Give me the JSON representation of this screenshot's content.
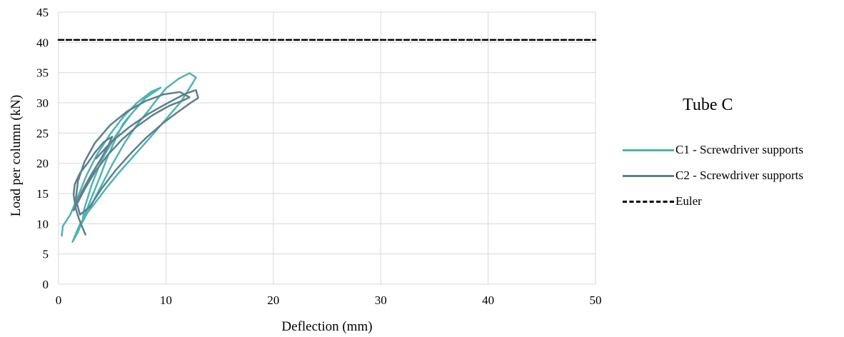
{
  "chart_data": {
    "type": "line",
    "title": "",
    "annotation": "Tube C",
    "xlabel": "Deflection (mm)",
    "ylabel": "Load per column (kN)",
    "xlim": [
      0,
      50
    ],
    "ylim": [
      0,
      45
    ],
    "xticks": [
      0,
      10,
      20,
      30,
      40,
      50
    ],
    "yticks": [
      0,
      5,
      10,
      15,
      20,
      25,
      30,
      35,
      40,
      45
    ],
    "grid": true,
    "legend_position": "right",
    "series": [
      {
        "name": "C1 - Screwdriver supports",
        "color": "#4fb3b3",
        "x": [
          0.3,
          0.4,
          1.1,
          1.8,
          2.6,
          3.6,
          4.8,
          6.0,
          7.3,
          8.6,
          9.5,
          8.1,
          6.7,
          5.3,
          4.0,
          3.1,
          2.4,
          2.2,
          2.8,
          3.9,
          5.0,
          6.2,
          7.4,
          8.5,
          9.0,
          10.0,
          11.2,
          12.2,
          12.8,
          12.4,
          11.4,
          10.1,
          8.7,
          7.2,
          5.7,
          4.4,
          3.3,
          2.5,
          1.9,
          1.3,
          1.8,
          2.3,
          3.0,
          3.8,
          4.5,
          5.2,
          6.0,
          6.6
        ],
        "y": [
          8.0,
          9.6,
          11.5,
          14.5,
          18.0,
          21.5,
          24.8,
          27.6,
          30.0,
          31.8,
          32.5,
          30.8,
          28.0,
          24.5,
          20.5,
          16.5,
          12.5,
          10.2,
          12.2,
          16.0,
          19.8,
          23.5,
          26.6,
          29.0,
          30.2,
          32.4,
          34.0,
          34.9,
          34.2,
          33.0,
          30.2,
          27.5,
          24.6,
          21.6,
          18.6,
          15.8,
          13.2,
          11.4,
          9.6,
          7.0,
          8.6,
          10.8,
          14.0,
          17.5,
          20.8,
          23.6,
          26.5,
          27.8
        ]
      },
      {
        "name": "C2 - Screwdriver supports",
        "color": "#5e7f8c",
        "x": [
          2.5,
          2.2,
          1.9,
          1.6,
          1.4,
          1.5,
          2.0,
          2.7,
          3.4,
          4.2,
          5.0,
          4.6,
          3.9,
          3.0,
          2.2,
          1.6,
          1.4,
          1.7,
          2.4,
          3.4,
          4.6,
          5.9,
          7.3,
          8.8,
          10.3,
          11.6,
          12.2,
          11.3,
          9.8,
          8.1,
          6.4,
          4.8,
          3.4,
          2.4,
          1.8,
          1.6,
          2.0,
          2.9,
          4.0,
          5.3,
          6.7,
          8.2,
          9.7,
          11.2,
          12.3,
          13.0,
          12.8,
          11.8,
          10.2,
          8.4,
          6.6,
          4.9,
          3.5
        ],
        "y": [
          8.2,
          9.5,
          10.8,
          12.5,
          14.8,
          16.5,
          18.4,
          20.0,
          21.8,
          23.5,
          24.4,
          22.8,
          20.6,
          18.0,
          15.4,
          13.0,
          12.2,
          13.2,
          15.6,
          18.6,
          21.4,
          23.9,
          26.1,
          28.0,
          29.5,
          30.4,
          30.9,
          31.8,
          31.4,
          30.3,
          28.6,
          26.3,
          23.4,
          20.2,
          17.0,
          14.0,
          11.5,
          12.8,
          15.8,
          18.8,
          21.6,
          24.3,
          26.6,
          28.6,
          30.0,
          30.8,
          32.1,
          31.5,
          30.0,
          28.2,
          26.0,
          23.5,
          20.8
        ]
      },
      {
        "name": "Euler",
        "color": "#000000",
        "dashed": true,
        "x": [
          0,
          50
        ],
        "y": [
          40.4,
          40.4
        ]
      }
    ]
  }
}
